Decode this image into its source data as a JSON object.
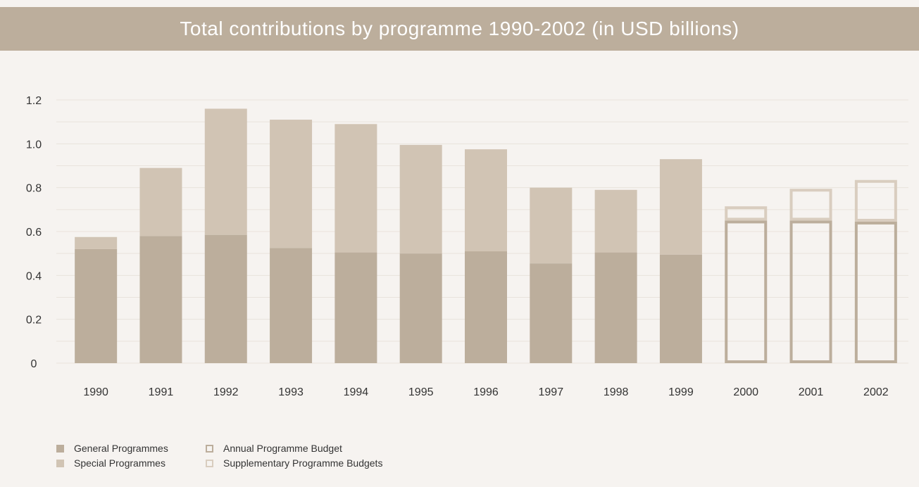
{
  "colors": {
    "general": "#bcae9c",
    "special": "#d1c4b4",
    "annual": "#bcae9c",
    "supplementary": "#d9cdbf",
    "grid": "#e9e3dc",
    "background": "#f6f3f0"
  },
  "chart_data": {
    "type": "bar",
    "title": "Total contributions by programme 1990-2002 (in USD billions)",
    "xlabel": "",
    "ylabel": "",
    "ylim": [
      0,
      1.2
    ],
    "yticks": [
      "0",
      "0.2",
      "0.4",
      "0.6",
      "0.8",
      "1.0",
      "1.2"
    ],
    "grid": true,
    "stacked": true,
    "legend_position": "bottom-left",
    "categories": [
      "1990",
      "1991",
      "1992",
      "1993",
      "1994",
      "1995",
      "1996",
      "1997",
      "1998",
      "1999",
      "2000",
      "2001",
      "2002"
    ],
    "series": [
      {
        "name": "General Programmes",
        "style": "filled",
        "values": [
          0.52,
          0.58,
          0.585,
          0.525,
          0.505,
          0.5,
          0.51,
          0.455,
          0.505,
          0.495,
          null,
          null,
          null
        ]
      },
      {
        "name": "Special Programmes",
        "style": "filled",
        "values": [
          0.055,
          0.31,
          0.575,
          0.585,
          0.585,
          0.495,
          0.465,
          0.345,
          0.285,
          0.435,
          null,
          null,
          null
        ]
      },
      {
        "name": "Annual Programme Budget",
        "style": "outline",
        "values": [
          null,
          null,
          null,
          null,
          null,
          null,
          null,
          null,
          null,
          null,
          0.65,
          0.65,
          0.645
        ]
      },
      {
        "name": "Supplementary Programme Budgets",
        "style": "outline",
        "values": [
          null,
          null,
          null,
          null,
          null,
          null,
          null,
          null,
          null,
          null,
          0.065,
          0.145,
          0.19
        ]
      }
    ]
  }
}
